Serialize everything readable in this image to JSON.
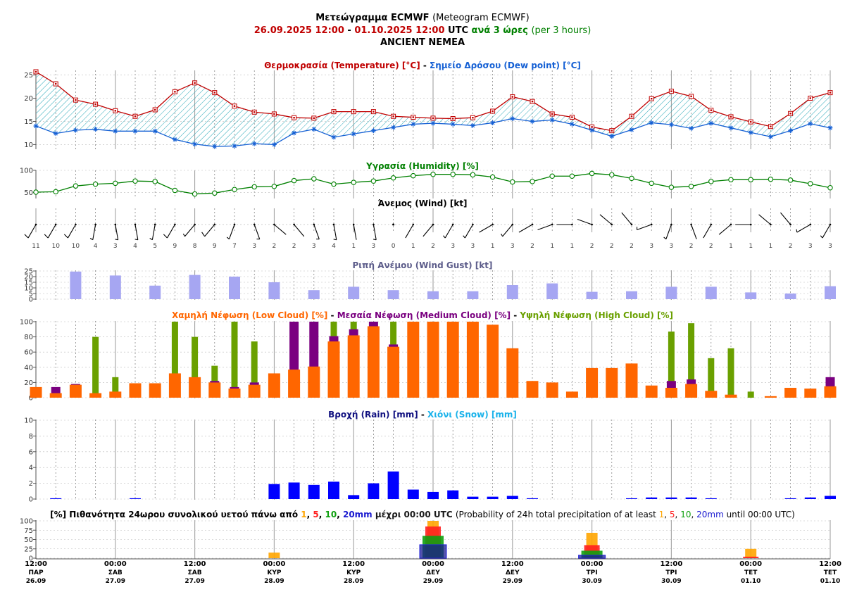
{
  "header": {
    "title_gr": "Μετεώγραμμα ECMWF",
    "title_en": "(Meteogram ECMWF)",
    "start": "26.09.2025 12:00",
    "dash": "-",
    "end": "01.10.2025 12:00",
    "utc": "UTC",
    "step_gr": "ανά 3 ώρες",
    "step_en": "(per 3 hours)",
    "location": "ANCIENT NEMEA"
  },
  "colors": {
    "temperature": "#c00000",
    "dewpoint": "#1560d4",
    "humidity": "#008000",
    "gust": "#a6a6f2",
    "low_cloud": "#ff6600",
    "medium_cloud": "#7a0080",
    "high_cloud": "#6aa000",
    "rain": "#0000ff",
    "snow": "#1ab2ea",
    "p1": "#ffa500",
    "p5": "#ff2020",
    "p10": "#10a010",
    "p20": "#1a1a90"
  },
  "titles": {
    "temp_gr": "Θερμοκρασία (Temperature) [°C]",
    "temp_sep": "-",
    "dew_gr": "Σημείο Δρόσου (Dew point) [°C]",
    "humidity": "Υγρασία (Humidity) [%]",
    "wind": "Άνεμος (Wind) [kt]",
    "gust": "Ριπή Ανέμου (Wind Gust) [kt]",
    "low_cloud": "Χαμηλή Νέφωση (Low Cloud) [%]",
    "medium_cloud": "Μεσαία Νέφωση (Medium Cloud) [%]",
    "high_cloud": "Υψηλή Νέφωση (High Cloud) [%]",
    "cloud_sep": "-",
    "rain": "Βροχή (Rain) [mm]",
    "rain_sep": "-",
    "snow": "Χιόνι (Snow) [mm]",
    "prob_gr_pre": "[%] Πιθανότητα 24ωρου συνολικού υετού πάνω από",
    "prob_t1": "1",
    "prob_c1": ",",
    "prob_t5": "5",
    "prob_c2": ",",
    "prob_t10": "10",
    "prob_c3": ",",
    "prob_t20": "20mm",
    "prob_gr_post": "μέχρι 00:00 UTC",
    "prob_en_pre": "(Probability of 24h total precipitation of at least",
    "prob_en_post": "until 00:00 UTC)"
  },
  "chart_data": [
    {
      "type": "line",
      "panel": "temperature",
      "y_ticks": [
        "25",
        "20",
        "15",
        "10"
      ],
      "ylim": [
        9,
        26
      ],
      "series": [
        {
          "name": "Θερμοκρασία (Temperature) [°C]",
          "values": [
            25.7,
            23.1,
            19.6,
            18.7,
            17.3,
            16.1,
            17.5,
            21.4,
            23.3,
            21.2,
            18.3,
            17.0,
            16.6,
            15.8,
            15.7,
            17.1,
            17.1,
            17.1,
            16.1,
            15.9,
            15.7,
            15.6,
            15.8,
            17.2,
            20.3,
            19.3,
            16.6,
            15.9,
            13.8,
            13.0,
            16.1,
            19.9,
            21.5,
            20.4,
            17.4,
            16.0,
            14.9,
            13.9,
            16.7,
            20.0,
            21.2
          ]
        },
        {
          "name": "Σημείο Δρόσου (Dew point) [°C]",
          "values": [
            14.0,
            12.4,
            13.1,
            13.3,
            12.9,
            12.9,
            12.9,
            11.1,
            10.1,
            9.6,
            9.7,
            10.2,
            10.0,
            12.5,
            13.3,
            11.6,
            12.3,
            13.0,
            13.7,
            14.4,
            14.6,
            14.4,
            14.1,
            14.7,
            15.6,
            15.0,
            15.3,
            14.4,
            13.1,
            11.8,
            13.2,
            14.7,
            14.3,
            13.5,
            14.6,
            13.6,
            12.6,
            11.7,
            13.0,
            14.5,
            13.6
          ]
        }
      ]
    },
    {
      "type": "line",
      "panel": "humidity",
      "y_ticks": [
        "100",
        "50"
      ],
      "ylim": [
        40,
        100
      ],
      "series": [
        {
          "name": "Υγρασία (Humidity) [%]",
          "values": [
            51,
            52,
            65,
            69,
            71,
            76,
            75,
            55,
            47,
            49,
            57,
            63,
            64,
            77,
            81,
            69,
            73,
            76,
            83,
            88,
            91,
            91,
            90,
            85,
            74,
            75,
            87,
            87,
            93,
            90,
            82,
            71,
            62,
            64,
            75,
            79,
            79,
            80,
            78,
            70,
            61
          ]
        }
      ]
    },
    {
      "type": "table",
      "panel": "wind",
      "name": "Άνεμος (Wind) [kt]",
      "speed_kt": [
        "11",
        "10",
        "10",
        "4",
        "3",
        "4",
        "5",
        "9",
        "8",
        "9",
        "7",
        "3",
        "2",
        "2",
        "3",
        "4",
        "1",
        "3",
        "0",
        "1",
        "2",
        "3",
        "3",
        "1",
        "3",
        "2",
        "1",
        "1",
        "2",
        "2",
        "2",
        "3",
        "3",
        "2",
        "2",
        "1",
        "1",
        "1",
        "2",
        "3",
        "3"
      ],
      "direction_deg": [
        210,
        210,
        210,
        190,
        170,
        170,
        190,
        210,
        220,
        220,
        200,
        160,
        130,
        140,
        160,
        170,
        170,
        170,
        0,
        210,
        220,
        210,
        210,
        240,
        220,
        240,
        250,
        270,
        290,
        310,
        320,
        250,
        200,
        160,
        210,
        230,
        270,
        310,
        320,
        240,
        210
      ]
    },
    {
      "type": "bar",
      "panel": "gust",
      "y_ticks": [
        "25",
        "20",
        "15",
        "10",
        "5",
        "0"
      ],
      "ylim": [
        0,
        25
      ],
      "x_index": [
        2,
        4,
        6,
        8,
        10,
        12,
        14,
        16,
        18,
        20,
        22,
        24,
        26,
        28,
        30,
        32,
        34,
        36,
        38,
        40
      ],
      "values": [
        24.5,
        21.0,
        12.0,
        21.5,
        20.0,
        15.0,
        8.0,
        11.0,
        8.0,
        7.0,
        7.0,
        12.5,
        14.0,
        6.5,
        7.0,
        11.0,
        11.0,
        6.0,
        5.0,
        11.5
      ]
    },
    {
      "type": "bar",
      "panel": "clouds",
      "y_ticks": [
        "100",
        "80",
        "60",
        "40",
        "20",
        "0"
      ],
      "ylim": [
        0,
        100
      ],
      "series": [
        {
          "name": "Υψηλή Νέφωση (High Cloud) [%]",
          "values": [
            0,
            0,
            18,
            80,
            27,
            0,
            0,
            100,
            80,
            42,
            100,
            74,
            0,
            0,
            0,
            100,
            100,
            100,
            100,
            100,
            0,
            0,
            0,
            0,
            0,
            0,
            0,
            0,
            0,
            0,
            0,
            0,
            87,
            98,
            52,
            65,
            8,
            0,
            0,
            0,
            0
          ]
        },
        {
          "name": "Μεσαία Νέφωση (Medium Cloud) [%]",
          "values": [
            0,
            14,
            18,
            0,
            0,
            0,
            0,
            0,
            0,
            22,
            14,
            20,
            0,
            100,
            100,
            81,
            90,
            100,
            70,
            0,
            0,
            0,
            0,
            0,
            0,
            0,
            0,
            0,
            0,
            0,
            0,
            0,
            22,
            24,
            0,
            0,
            0,
            0,
            0,
            0,
            27
          ]
        },
        {
          "name": "Χαμηλή Νέφωση (Low Cloud) [%]",
          "values": [
            14,
            6,
            17,
            6,
            8,
            19,
            19,
            32,
            27,
            20,
            12,
            17,
            32,
            37,
            41,
            74,
            82,
            94,
            67,
            100,
            100,
            100,
            100,
            96,
            65,
            22,
            20,
            8,
            39,
            39,
            45,
            16,
            13,
            18,
            9,
            4,
            0,
            2,
            13,
            12,
            15
          ]
        }
      ]
    },
    {
      "type": "bar",
      "panel": "precipitation",
      "y_ticks": [
        "10",
        "8",
        "6",
        "4",
        "2",
        "0"
      ],
      "ylim": [
        0,
        10
      ],
      "series": [
        {
          "name": "Βροχή (Rain) [mm]",
          "values": [
            0,
            0.1,
            0,
            0,
            0,
            0.1,
            0,
            0,
            0,
            0,
            0,
            0,
            1.9,
            2.1,
            1.8,
            2.2,
            0.5,
            2.0,
            3.5,
            1.2,
            0.9,
            1.1,
            0.3,
            0.3,
            0.4,
            0.1,
            0,
            0,
            0,
            0,
            0.1,
            0.2,
            0.2,
            0.2,
            0.1,
            0,
            0,
            0,
            0.1,
            0.2,
            0.4
          ]
        },
        {
          "name": "Χιόνι (Snow) [mm]",
          "values": [
            0,
            0,
            0,
            0,
            0,
            0,
            0,
            0,
            0,
            0,
            0,
            0,
            0,
            0,
            0,
            0,
            0,
            0,
            0,
            0,
            0,
            0,
            0,
            0,
            0,
            0,
            0,
            0,
            0,
            0,
            0,
            0,
            0,
            0,
            0,
            0,
            0,
            0,
            0,
            0,
            0
          ]
        }
      ]
    },
    {
      "type": "bar",
      "panel": "probability",
      "y_ticks": [
        "100",
        "75",
        "50",
        "25",
        "0"
      ],
      "ylim": [
        0,
        100
      ],
      "x_index": [
        4,
        12,
        20,
        28,
        36
      ],
      "series": [
        {
          "name": "1",
          "values": [
            0,
            15,
            100,
            68,
            25
          ]
        },
        {
          "name": "5",
          "values": [
            0,
            0,
            85,
            35,
            4
          ]
        },
        {
          "name": "10",
          "values": [
            0,
            0,
            60,
            20,
            0
          ]
        },
        {
          "name": "20mm",
          "values": [
            0,
            0,
            36,
            8,
            0
          ]
        }
      ]
    },
    {
      "type": "table",
      "panel": "time-axis",
      "ticks": [
        {
          "time": "12:00",
          "day": "ΠΑΡ",
          "date": "26.09"
        },
        {
          "time": "00:00",
          "day": "ΣΑΒ",
          "date": "27.09"
        },
        {
          "time": "12:00",
          "day": "ΣΑΒ",
          "date": "27.09"
        },
        {
          "time": "00:00",
          "day": "ΚΥΡ",
          "date": "28.09"
        },
        {
          "time": "12:00",
          "day": "ΚΥΡ",
          "date": "28.09"
        },
        {
          "time": "00:00",
          "day": "ΔΕΥ",
          "date": "29.09"
        },
        {
          "time": "12:00",
          "day": "ΔΕΥ",
          "date": "29.09"
        },
        {
          "time": "00:00",
          "day": "ΤΡΙ",
          "date": "30.09"
        },
        {
          "time": "12:00",
          "day": "ΤΡΙ",
          "date": "30.09"
        },
        {
          "time": "00:00",
          "day": "ΤΕΤ",
          "date": "01.10"
        },
        {
          "time": "12:00",
          "day": "ΤΕΤ",
          "date": "01.10"
        }
      ]
    }
  ]
}
